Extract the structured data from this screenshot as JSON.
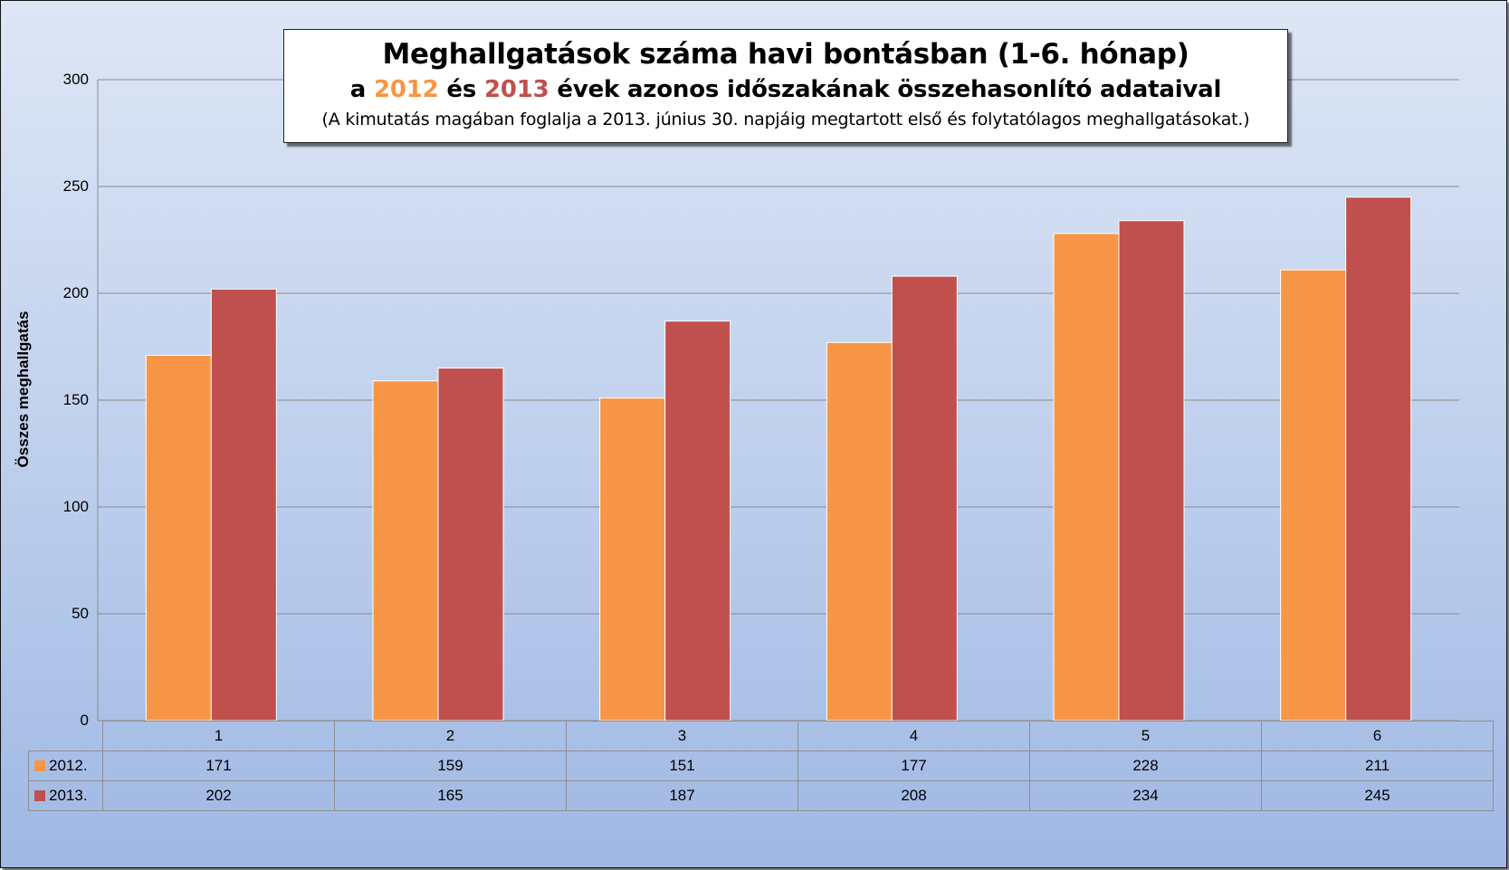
{
  "title": {
    "line1": "Meghallgatások száma havi bontásban (1-6. hónap)",
    "line2_prefix": "a ",
    "line2_year1": "2012",
    "line2_mid": " és ",
    "line2_year2": "2013",
    "line2_suffix": " évek azonos időszakának összehasonlító adataival",
    "line3": "(A kimutatás magában foglalja a 2013. június 30. napjáig megtartott első és folytatólagos meghallgatásokat.)"
  },
  "chart_data": {
    "type": "bar",
    "title": "Meghallgatások száma havi bontásban (1-6. hónap)",
    "subtitle": "a 2012 és 2013 évek azonos időszakának összehasonlító adataival",
    "xlabel": "",
    "ylabel": "Összes meghallgatás",
    "ylim": [
      0,
      300
    ],
    "yticks": [
      "0",
      "50",
      "100",
      "150",
      "200",
      "250",
      "300"
    ],
    "categories": [
      "1",
      "2",
      "3",
      "4",
      "5",
      "6"
    ],
    "series": [
      {
        "name": "2012.",
        "color": "#f79646",
        "values": [
          171,
          159,
          151,
          177,
          228,
          211
        ]
      },
      {
        "name": "2013.",
        "color": "#c0504d",
        "values": [
          202,
          165,
          187,
          208,
          234,
          245
        ]
      }
    ],
    "grid": true,
    "legend": "data-table"
  }
}
